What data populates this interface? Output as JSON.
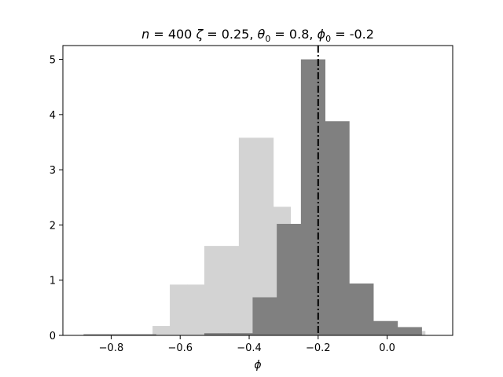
{
  "chart_data": {
    "type": "bar",
    "title": {
      "n_label": "n",
      "n_value": "400",
      "zeta_label": "ζ",
      "zeta_value": "0.25,",
      "theta_label": "θ",
      "theta_sub": "0",
      "theta_value": "0.8,",
      "phi_label": "ϕ",
      "phi_sub": "0",
      "phi_value": "-0.2"
    },
    "xlabel": "ϕ",
    "ylabel": "",
    "xlim": [
      -0.94,
      0.19
    ],
    "ylim": [
      0,
      5.25
    ],
    "x_ticks": [
      -0.8,
      -0.6,
      -0.4,
      -0.2,
      0.0
    ],
    "x_tick_labels": [
      "−0.8",
      "−0.6",
      "−0.4",
      "−0.2",
      "0.0"
    ],
    "y_ticks": [
      0,
      1,
      2,
      3,
      4,
      5
    ],
    "y_tick_labels": [
      "0",
      "1",
      "2",
      "3",
      "4",
      "5"
    ],
    "reference_line": {
      "x": -0.2,
      "color": "#000000",
      "style": "dash-dot"
    },
    "series": [
      {
        "color": "#d3d3d3",
        "bins": [
          {
            "x0": -0.68,
            "x1": -0.63,
            "value": 0.17
          },
          {
            "x0": -0.63,
            "x1": -0.58,
            "value": 0.92
          },
          {
            "x0": -0.58,
            "x1": -0.53,
            "value": 0.92
          },
          {
            "x0": -0.53,
            "x1": -0.48,
            "value": 1.62
          },
          {
            "x0": -0.48,
            "x1": -0.43,
            "value": 1.62
          },
          {
            "x0": -0.43,
            "x1": -0.38,
            "value": 3.58
          },
          {
            "x0": -0.38,
            "x1": -0.33,
            "value": 3.58
          },
          {
            "x0": -0.33,
            "x1": -0.28,
            "value": 2.33
          },
          {
            "x0": -0.28,
            "x1": -0.23,
            "value": 1.7
          },
          {
            "x0": -0.23,
            "x1": -0.18,
            "value": 1.7
          },
          {
            "x0": -0.18,
            "x1": -0.13,
            "value": 1.17
          },
          {
            "x0": -0.13,
            "x1": -0.08,
            "value": 0.17
          },
          {
            "x0": -0.08,
            "x1": -0.03,
            "value": 0.12
          },
          {
            "x0": -0.03,
            "x1": 0.02,
            "value": 0.12
          },
          {
            "x0": 0.02,
            "x1": 0.07,
            "value": 0.08
          },
          {
            "x0": 0.07,
            "x1": 0.11,
            "value": 0.08
          }
        ]
      },
      {
        "color": "#808080",
        "bins": [
          {
            "x0": -0.88,
            "x1": -0.81,
            "value": 0.02
          },
          {
            "x0": -0.81,
            "x1": -0.74,
            "value": 0.02
          },
          {
            "x0": -0.74,
            "x1": -0.67,
            "value": 0.02
          },
          {
            "x0": -0.67,
            "x1": -0.6,
            "value": 0.0
          },
          {
            "x0": -0.6,
            "x1": -0.53,
            "value": 0.0
          },
          {
            "x0": -0.53,
            "x1": -0.46,
            "value": 0.04
          },
          {
            "x0": -0.46,
            "x1": -0.39,
            "value": 0.04
          },
          {
            "x0": -0.39,
            "x1": -0.32,
            "value": 0.69
          },
          {
            "x0": -0.32,
            "x1": -0.25,
            "value": 2.02
          },
          {
            "x0": -0.25,
            "x1": -0.18,
            "value": 5.0
          },
          {
            "x0": -0.18,
            "x1": -0.11,
            "value": 3.88
          },
          {
            "x0": -0.11,
            "x1": -0.04,
            "value": 0.94
          },
          {
            "x0": -0.04,
            "x1": 0.03,
            "value": 0.26
          },
          {
            "x0": 0.03,
            "x1": 0.1,
            "value": 0.15
          }
        ]
      }
    ]
  }
}
